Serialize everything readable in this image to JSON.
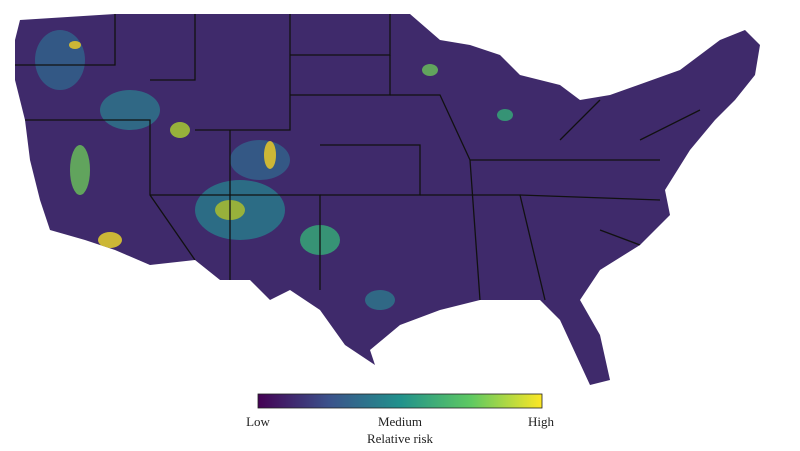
{
  "legend": {
    "labels": [
      "Low",
      "Medium",
      "High"
    ],
    "title": "Relative risk"
  }
}
